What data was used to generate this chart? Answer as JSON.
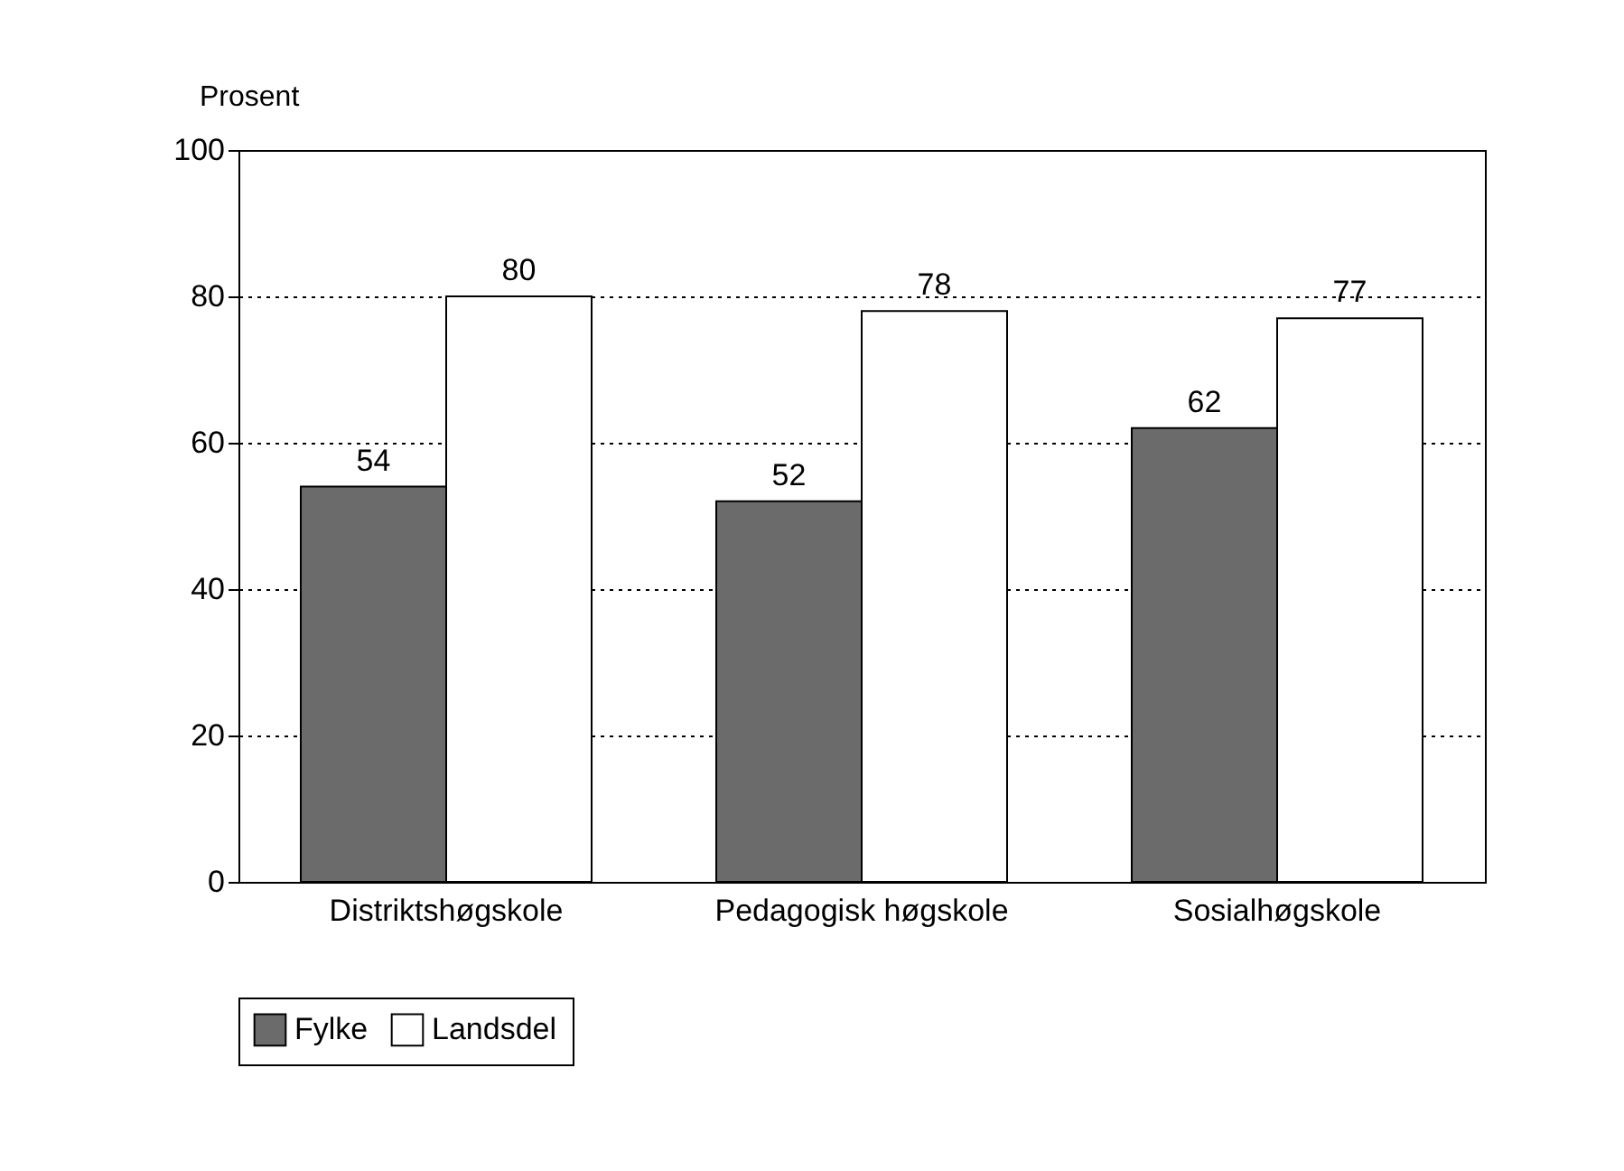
{
  "chart_data": {
    "type": "bar",
    "ylabel": "Prosent",
    "categories": [
      "Distriktshøgskole",
      "Pedagogisk høgskole",
      "Sosialhøgskole"
    ],
    "series": [
      {
        "name": "Fylke",
        "color": "#6b6b6b",
        "values": [
          54,
          52,
          62
        ]
      },
      {
        "name": "Landsdel",
        "color": "#ffffff",
        "values": [
          80,
          78,
          77
        ]
      }
    ],
    "ylim": [
      0,
      100
    ],
    "yticks": [
      0,
      20,
      40,
      60,
      80,
      100
    ],
    "grid": "y",
    "line_style": "dotted",
    "legend": "bottom",
    "data_labels": true
  }
}
